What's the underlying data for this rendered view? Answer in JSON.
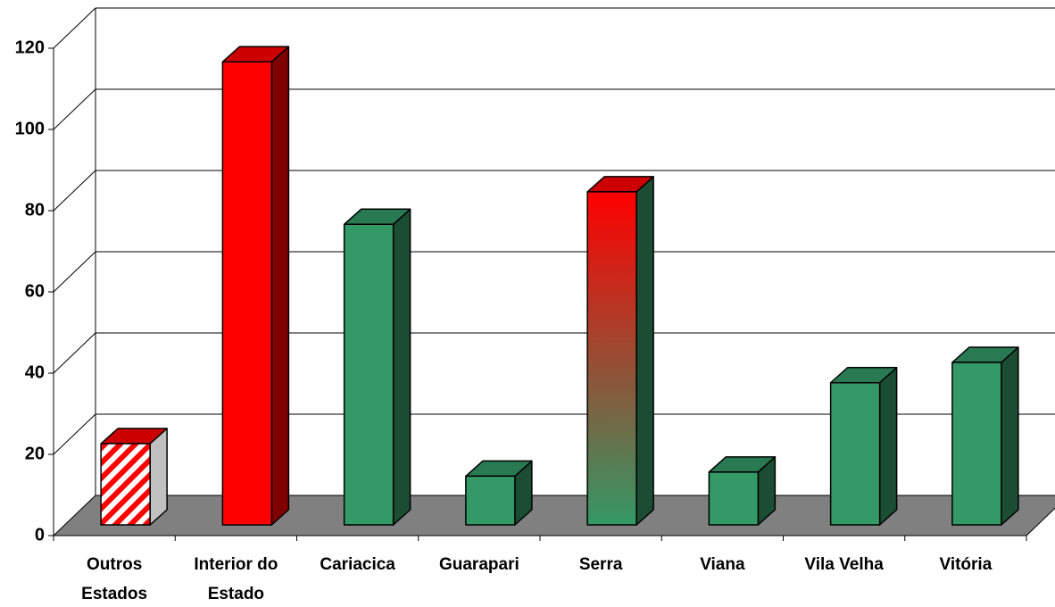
{
  "chart_data": {
    "type": "bar3d",
    "categories": [
      "Outros Estados",
      "Interior do Estado",
      "Cariacica",
      "Guarapari",
      "Serra",
      "Viana",
      "Vila Velha",
      "Vitória"
    ],
    "values": [
      20,
      114,
      74,
      12,
      82,
      13,
      35,
      40
    ],
    "colors": [
      {
        "type": "hatch",
        "colors": [
          "#ff0000",
          "#ffffff"
        ]
      },
      "#ff0000",
      "#339966",
      "#339966",
      {
        "type": "gradient",
        "colors": [
          "#ff0000",
          "#339966"
        ]
      },
      "#339966",
      "#339966",
      "#339966"
    ],
    "ylim": [
      0,
      120
    ],
    "yticks": [
      0,
      20,
      40,
      60,
      80,
      100,
      120
    ],
    "grid": true
  }
}
